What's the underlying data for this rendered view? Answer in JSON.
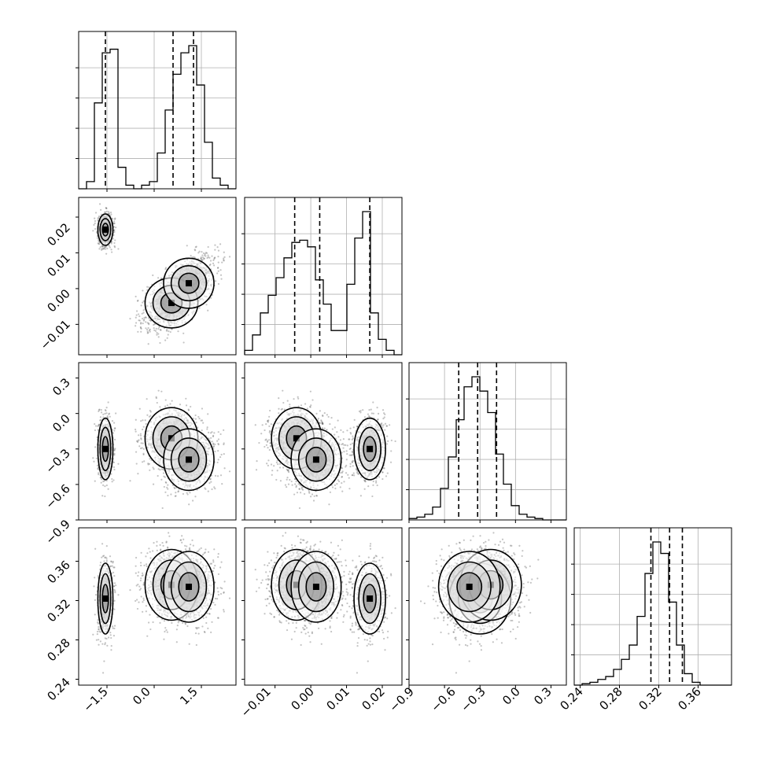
{
  "chart_data": {
    "type": "corner",
    "x_ticks": [
      "−1.5",
      "0.0",
      "1.5"
    ],
    "y_ticks": [
      "0.02",
      "0.01",
      "0.00",
      "−0.01"
    ],
    "z_ticks": [
      "0.3",
      "0.0",
      "−0.3",
      "−0.6",
      "−0.9"
    ],
    "w_ticks": [
      "0.36",
      "0.32",
      "0.28",
      "0.24"
    ],
    "w_axis_ticks": [
      "0.24",
      "0.28",
      "0.32",
      "0.36"
    ],
    "y_axis_ticks": [
      "−0.01",
      "0.00",
      "0.01",
      "0.02"
    ],
    "z_axis_ticks": [
      "−0.9",
      "−0.6",
      "−0.3",
      "0.0",
      "0.3"
    ],
    "params": [
      {
        "range": [
          -2.4,
          2.6
        ],
        "ticks": [
          -1.5,
          0.0,
          1.5
        ],
        "quantiles": [
          -1.55,
          0.6,
          1.25
        ],
        "hist": [
          0,
          2,
          24,
          38,
          39,
          6,
          1,
          0,
          1,
          2,
          10,
          22,
          32,
          38,
          40,
          29,
          13,
          3,
          1,
          0
        ]
      },
      {
        "range": [
          -0.0185,
          0.0255
        ],
        "ticks": [
          -0.01,
          0.0,
          0.01,
          0.02
        ],
        "quantiles": [
          -0.0045,
          0.0025,
          0.0165
        ],
        "hist": [
          2,
          9,
          19,
          27,
          35,
          44,
          51,
          52,
          49,
          34,
          23,
          11,
          11,
          32,
          53,
          65,
          19,
          7,
          2,
          0
        ]
      },
      {
        "range": [
          -0.9,
          0.43
        ],
        "ticks": [
          -0.9,
          -0.6,
          -0.3,
          0.0,
          0.3
        ],
        "quantiles": [
          -0.48,
          -0.32,
          -0.16
        ],
        "hist": [
          1,
          2,
          4,
          9,
          22,
          44,
          70,
          93,
          100,
          90,
          75,
          46,
          25,
          10,
          4,
          2,
          1,
          0,
          0,
          0
        ]
      },
      {
        "range": [
          0.234,
          0.394
        ],
        "ticks": [
          0.24,
          0.28,
          0.32,
          0.36
        ],
        "quantiles": [
          0.312,
          0.331,
          0.344
        ],
        "hist": [
          0,
          1,
          2,
          4,
          6,
          11,
          18,
          28,
          48,
          78,
          100,
          92,
          58,
          28,
          8,
          2,
          0,
          0,
          0,
          0
        ]
      }
    ]
  }
}
